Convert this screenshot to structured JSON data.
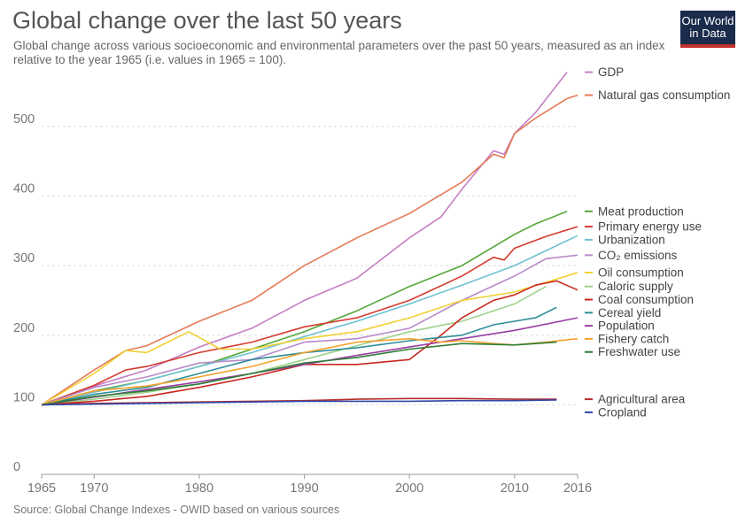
{
  "header": {
    "title": "Global change over the last 50 years",
    "subtitle": "Global change across various socioeconomic and environmental parameters over the past 50 years, measured as an index relative to the year 1965 (i.e. values in 1965 = 100).",
    "logo_line1": "Our World",
    "logo_line2": "in Data"
  },
  "footer": {
    "source": "Source: Global Change Indexes - OWID based on various sources"
  },
  "colors": {
    "grid": "#dddddd",
    "axis": "#999999"
  },
  "chart_data": {
    "type": "line",
    "title": "Global change over the last 50 years",
    "xlabel": "",
    "ylabel": "",
    "xlim": [
      1965,
      2016
    ],
    "ylim": [
      0,
      580
    ],
    "x_ticks": [
      "1965",
      "1970",
      "1980",
      "1990",
      "2000",
      "2010",
      "2016"
    ],
    "y_ticks": [
      "0",
      "100",
      "200",
      "300",
      "400",
      "500"
    ],
    "grid": "horizontal dotted",
    "legend_placement": "right",
    "series": [
      {
        "name": "GDP",
        "color": "#c57ec4",
        "points": [
          [
            1965,
            100
          ],
          [
            1970,
            127
          ],
          [
            1975,
            150
          ],
          [
            1980,
            183
          ],
          [
            1985,
            210
          ],
          [
            1990,
            250
          ],
          [
            1995,
            282
          ],
          [
            2000,
            340
          ],
          [
            2003,
            370
          ],
          [
            2005,
            410
          ],
          [
            2008,
            465
          ],
          [
            2009,
            460
          ],
          [
            2010,
            490
          ],
          [
            2012,
            520
          ],
          [
            2015,
            578
          ]
        ]
      },
      {
        "name": "Natural gas consumption",
        "color": "#e57a55",
        "points": [
          [
            1965,
            100
          ],
          [
            1970,
            150
          ],
          [
            1973,
            178
          ],
          [
            1975,
            185
          ],
          [
            1980,
            220
          ],
          [
            1985,
            250
          ],
          [
            1990,
            300
          ],
          [
            1995,
            340
          ],
          [
            2000,
            375
          ],
          [
            2005,
            420
          ],
          [
            2008,
            460
          ],
          [
            2009,
            455
          ],
          [
            2010,
            490
          ],
          [
            2012,
            512
          ],
          [
            2015,
            540
          ],
          [
            2016,
            545
          ]
        ]
      },
      {
        "name": "Meat production",
        "color": "#52a637",
        "points": [
          [
            1965,
            100
          ],
          [
            1970,
            120
          ],
          [
            1975,
            135
          ],
          [
            1980,
            155
          ],
          [
            1985,
            180
          ],
          [
            1990,
            205
          ],
          [
            1995,
            235
          ],
          [
            2000,
            270
          ],
          [
            2005,
            300
          ],
          [
            2010,
            345
          ],
          [
            2012,
            360
          ],
          [
            2015,
            378
          ]
        ]
      },
      {
        "name": "Primary energy use",
        "color": "#d63a2f",
        "points": [
          [
            1965,
            100
          ],
          [
            1970,
            128
          ],
          [
            1973,
            150
          ],
          [
            1975,
            155
          ],
          [
            1980,
            175
          ],
          [
            1985,
            190
          ],
          [
            1990,
            212
          ],
          [
            1995,
            225
          ],
          [
            2000,
            250
          ],
          [
            2005,
            285
          ],
          [
            2008,
            312
          ],
          [
            2009,
            308
          ],
          [
            2010,
            325
          ],
          [
            2013,
            342
          ],
          [
            2016,
            356
          ]
        ]
      },
      {
        "name": "Urbanization",
        "color": "#6ec2d1",
        "points": [
          [
            1965,
            100
          ],
          [
            1970,
            118
          ],
          [
            1975,
            135
          ],
          [
            1980,
            155
          ],
          [
            1985,
            175
          ],
          [
            1990,
            198
          ],
          [
            1995,
            220
          ],
          [
            2000,
            245
          ],
          [
            2005,
            272
          ],
          [
            2010,
            300
          ],
          [
            2016,
            343
          ]
        ]
      },
      {
        "name": "CO₂ emissions",
        "color": "#b88acb",
        "points": [
          [
            1965,
            100
          ],
          [
            1970,
            125
          ],
          [
            1975,
            140
          ],
          [
            1980,
            160
          ],
          [
            1985,
            165
          ],
          [
            1990,
            190
          ],
          [
            1995,
            195
          ],
          [
            2000,
            210
          ],
          [
            2005,
            250
          ],
          [
            2010,
            285
          ],
          [
            2013,
            310
          ],
          [
            2016,
            315
          ]
        ]
      },
      {
        "name": "Oil consumption",
        "color": "#f2d033",
        "points": [
          [
            1965,
            100
          ],
          [
            1970,
            145
          ],
          [
            1973,
            178
          ],
          [
            1975,
            175
          ],
          [
            1979,
            205
          ],
          [
            1982,
            180
          ],
          [
            1985,
            180
          ],
          [
            1990,
            195
          ],
          [
            1995,
            205
          ],
          [
            2000,
            225
          ],
          [
            2005,
            250
          ],
          [
            2010,
            262
          ],
          [
            2016,
            290
          ]
        ]
      },
      {
        "name": "Caloric supply",
        "color": "#9fd18c",
        "points": [
          [
            1965,
            100
          ],
          [
            1970,
            108
          ],
          [
            1975,
            118
          ],
          [
            1980,
            130
          ],
          [
            1985,
            145
          ],
          [
            1990,
            165
          ],
          [
            1995,
            185
          ],
          [
            2000,
            205
          ],
          [
            2005,
            220
          ],
          [
            2010,
            245
          ],
          [
            2013,
            270
          ]
        ]
      },
      {
        "name": "Coal consumption",
        "color": "#c8281f",
        "points": [
          [
            1965,
            100
          ],
          [
            1970,
            105
          ],
          [
            1975,
            112
          ],
          [
            1980,
            125
          ],
          [
            1985,
            140
          ],
          [
            1990,
            158
          ],
          [
            1995,
            158
          ],
          [
            2000,
            165
          ],
          [
            2003,
            200
          ],
          [
            2005,
            225
          ],
          [
            2008,
            250
          ],
          [
            2010,
            258
          ],
          [
            2012,
            272
          ],
          [
            2014,
            278
          ],
          [
            2016,
            265
          ]
        ]
      },
      {
        "name": "Cereal yield",
        "color": "#2e8d96",
        "points": [
          [
            1965,
            100
          ],
          [
            1970,
            115
          ],
          [
            1975,
            125
          ],
          [
            1980,
            145
          ],
          [
            1985,
            165
          ],
          [
            1990,
            175
          ],
          [
            1995,
            182
          ],
          [
            2000,
            192
          ],
          [
            2005,
            200
          ],
          [
            2008,
            215
          ],
          [
            2010,
            220
          ],
          [
            2012,
            225
          ],
          [
            2014,
            240
          ]
        ]
      },
      {
        "name": "Population",
        "color": "#9a3da5",
        "points": [
          [
            1965,
            100
          ],
          [
            1970,
            111
          ],
          [
            1975,
            122
          ],
          [
            1980,
            133
          ],
          [
            1985,
            145
          ],
          [
            1990,
            158
          ],
          [
            1995,
            171
          ],
          [
            2000,
            183
          ],
          [
            2005,
            195
          ],
          [
            2010,
            207
          ],
          [
            2016,
            225
          ]
        ]
      },
      {
        "name": "Fishery catch",
        "color": "#f3a12c",
        "points": [
          [
            1965,
            100
          ],
          [
            1970,
            120
          ],
          [
            1975,
            127
          ],
          [
            1980,
            140
          ],
          [
            1985,
            155
          ],
          [
            1990,
            175
          ],
          [
            1995,
            190
          ],
          [
            2000,
            195
          ],
          [
            2003,
            190
          ],
          [
            2005,
            192
          ],
          [
            2008,
            188
          ],
          [
            2010,
            186
          ],
          [
            2013,
            190
          ],
          [
            2016,
            195
          ]
        ]
      },
      {
        "name": "Freshwater use",
        "color": "#2f7d35",
        "points": [
          [
            1965,
            100
          ],
          [
            1970,
            112
          ],
          [
            1975,
            120
          ],
          [
            1980,
            130
          ],
          [
            1985,
            145
          ],
          [
            1990,
            160
          ],
          [
            1995,
            168
          ],
          [
            2000,
            180
          ],
          [
            2005,
            188
          ],
          [
            2010,
            186
          ],
          [
            2014,
            190
          ]
        ]
      },
      {
        "name": "Agricultural area",
        "color": "#b52d2a",
        "points": [
          [
            1965,
            100
          ],
          [
            1970,
            102
          ],
          [
            1975,
            103
          ],
          [
            1980,
            104
          ],
          [
            1985,
            105
          ],
          [
            1990,
            106
          ],
          [
            1995,
            108
          ],
          [
            2000,
            109
          ],
          [
            2005,
            109
          ],
          [
            2010,
            108
          ],
          [
            2014,
            108
          ]
        ]
      },
      {
        "name": "Cropland",
        "color": "#2e46a8",
        "points": [
          [
            1965,
            100
          ],
          [
            1970,
            101
          ],
          [
            1975,
            102
          ],
          [
            1980,
            103
          ],
          [
            1985,
            104
          ],
          [
            1990,
            105
          ],
          [
            1995,
            105
          ],
          [
            2000,
            105
          ],
          [
            2005,
            106
          ],
          [
            2010,
            106
          ],
          [
            2014,
            107
          ]
        ]
      }
    ]
  }
}
